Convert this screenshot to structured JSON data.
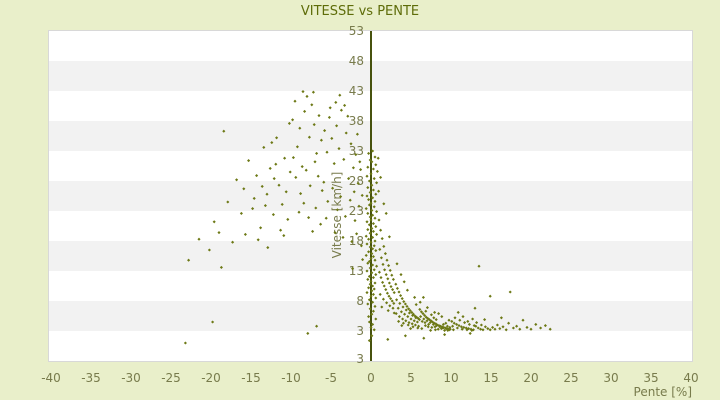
{
  "colors": {
    "page_bg": "#e9efca",
    "plot_bg": "#ffffff",
    "band": "#f2f2f2",
    "border": "#d8d8d8",
    "title": "#5e6c09",
    "label": "#787b4c",
    "axis": "#47520e",
    "point": "#6d7916"
  },
  "chart_data": {
    "type": "scatter",
    "title": "VITESSE vs PENTE",
    "xlabel": "Pente [%]",
    "ylabel": "Vitesse [km/h]",
    "xlim": [
      -40,
      40
    ],
    "ylim": [
      -2,
      53
    ],
    "x_ticks": [
      -40,
      -35,
      -30,
      -25,
      -20,
      -15,
      -10,
      -5,
      0,
      5,
      10,
      15,
      20,
      25,
      30,
      35,
      40
    ],
    "y_ticks": [
      53,
      48,
      43,
      38,
      33,
      28,
      23,
      18,
      13,
      8,
      3
    ],
    "y_axis_min_label": "3",
    "grid_bands": "alternating horizontal bands every 5 units",
    "legend": "none",
    "points": [
      [
        -23.2,
        1.0
      ],
      [
        -19.8,
        4.5
      ],
      [
        -22.8,
        14.8
      ],
      [
        -21.5,
        18.3
      ],
      [
        -20.2,
        16.5
      ],
      [
        -19.6,
        21.2
      ],
      [
        -19.0,
        19.4
      ],
      [
        -18.4,
        36.3
      ],
      [
        -18.7,
        13.6
      ],
      [
        -17.9,
        24.5
      ],
      [
        -17.3,
        17.8
      ],
      [
        -16.8,
        28.2
      ],
      [
        -16.2,
        22.6
      ],
      [
        -15.7,
        19.1
      ],
      [
        -15.3,
        31.4
      ],
      [
        -15.9,
        26.7
      ],
      [
        -14.8,
        23.4
      ],
      [
        -14.3,
        28.9
      ],
      [
        -13.8,
        20.2
      ],
      [
        -13.4,
        33.6
      ],
      [
        -13.0,
        25.8
      ],
      [
        -12.6,
        30.1
      ],
      [
        -12.2,
        22.4
      ],
      [
        -11.8,
        35.2
      ],
      [
        -11.5,
        27.3
      ],
      [
        -11.1,
        24.1
      ],
      [
        -10.8,
        31.8
      ],
      [
        -10.4,
        21.6
      ],
      [
        -10.1,
        29.5
      ],
      [
        -14.1,
        18.2
      ],
      [
        -12.9,
        16.9
      ],
      [
        -11.3,
        19.8
      ],
      [
        -10.6,
        26.2
      ],
      [
        -13.6,
        27.1
      ],
      [
        -12.4,
        34.4
      ],
      [
        -10.2,
        37.6
      ],
      [
        -14.6,
        25.1
      ],
      [
        -11.9,
        30.8
      ],
      [
        -10.9,
        18.9
      ],
      [
        -13.2,
        23.9
      ],
      [
        -12.1,
        28.4
      ],
      [
        -9.8,
        38.2
      ],
      [
        -9.5,
        41.3
      ],
      [
        -9.2,
        33.7
      ],
      [
        -8.9,
        36.8
      ],
      [
        -8.6,
        30.4
      ],
      [
        -8.3,
        39.6
      ],
      [
        -8.0,
        42.1
      ],
      [
        -7.7,
        35.3
      ],
      [
        -7.4,
        40.7
      ],
      [
        -7.1,
        37.4
      ],
      [
        -6.8,
        32.6
      ],
      [
        -6.5,
        38.9
      ],
      [
        -6.2,
        34.8
      ],
      [
        -9.4,
        28.6
      ],
      [
        -8.8,
        25.9
      ],
      [
        -8.1,
        29.8
      ],
      [
        -7.6,
        27.2
      ],
      [
        -7.0,
        31.2
      ],
      [
        -6.6,
        28.8
      ],
      [
        -6.1,
        26.4
      ],
      [
        -9.0,
        22.8
      ],
      [
        -8.4,
        24.3
      ],
      [
        -7.8,
        21.9
      ],
      [
        -6.9,
        23.5
      ],
      [
        -6.3,
        20.8
      ],
      [
        -9.7,
        31.9
      ],
      [
        -7.2,
        42.8
      ],
      [
        -8.5,
        42.9
      ],
      [
        -7.3,
        19.6
      ],
      [
        -7.9,
        2.6
      ],
      [
        -6.8,
        3.8
      ],
      [
        -5.8,
        36.4
      ],
      [
        -5.5,
        32.8
      ],
      [
        -5.2,
        38.6
      ],
      [
        -4.9,
        35.1
      ],
      [
        -4.6,
        30.9
      ],
      [
        -4.3,
        37.2
      ],
      [
        -4.0,
        33.4
      ],
      [
        -3.7,
        39.8
      ],
      [
        -3.4,
        31.6
      ],
      [
        -3.1,
        36.0
      ],
      [
        -2.8,
        28.4
      ],
      [
        -2.5,
        34.2
      ],
      [
        -2.2,
        30.2
      ],
      [
        -1.9,
        32.4
      ],
      [
        -1.6,
        27.6
      ],
      [
        -1.3,
        29.9
      ],
      [
        -5.9,
        27.8
      ],
      [
        -5.4,
        24.6
      ],
      [
        -4.8,
        26.8
      ],
      [
        -4.2,
        23.2
      ],
      [
        -3.8,
        25.4
      ],
      [
        -3.2,
        22.1
      ],
      [
        -2.6,
        24.8
      ],
      [
        -2.0,
        21.4
      ],
      [
        -1.5,
        23.8
      ],
      [
        -1.1,
        25.6
      ],
      [
        -5.6,
        21.8
      ],
      [
        -4.5,
        19.4
      ],
      [
        -3.5,
        18.6
      ],
      [
        -2.4,
        17.9
      ],
      [
        -1.8,
        19.2
      ],
      [
        -1.2,
        17.2
      ],
      [
        -5.1,
        40.2
      ],
      [
        -4.4,
        41.1
      ],
      [
        -3.9,
        42.3
      ],
      [
        -3.3,
        40.6
      ],
      [
        -2.9,
        38.8
      ],
      [
        -1.7,
        35.8
      ],
      [
        -1.4,
        31.2
      ],
      [
        -2.1,
        26.2
      ],
      [
        -1.05,
        14.9
      ],
      [
        -2.3,
        13.4
      ],
      [
        0.2,
        33.0
      ],
      [
        -0.3,
        32.6
      ],
      [
        0.5,
        32.0
      ],
      [
        -0.1,
        31.5
      ],
      [
        0.1,
        31.2
      ],
      [
        0.6,
        30.7
      ],
      [
        -0.4,
        30.3
      ],
      [
        0.3,
        30.0
      ],
      [
        0.8,
        29.6
      ],
      [
        0.0,
        29.2
      ],
      [
        -0.5,
        28.8
      ],
      [
        0.4,
        28.4
      ],
      [
        -0.2,
        28.0
      ],
      [
        0.7,
        27.7
      ],
      [
        0.1,
        27.3
      ],
      [
        -0.4,
        26.9
      ],
      [
        0.3,
        26.5
      ],
      [
        -0.1,
        26.1
      ],
      [
        0.6,
        25.8
      ],
      [
        -0.5,
        25.5
      ],
      [
        0.2,
        25.2
      ],
      [
        -0.3,
        24.9
      ],
      [
        0.5,
        24.6
      ],
      [
        0.0,
        24.3
      ],
      [
        -0.2,
        24.0
      ],
      [
        0.4,
        23.7
      ],
      [
        -0.6,
        23.4
      ],
      [
        0.1,
        23.1
      ],
      [
        0.7,
        22.9
      ],
      [
        -0.4,
        22.6
      ],
      [
        0.2,
        22.3
      ],
      [
        -0.1,
        22.0
      ],
      [
        0.5,
        21.8
      ],
      [
        0.0,
        21.5
      ],
      [
        -0.5,
        21.2
      ],
      [
        0.3,
        20.9
      ],
      [
        -0.2,
        20.7
      ],
      [
        0.6,
        20.4
      ],
      [
        0.1,
        20.1
      ],
      [
        -0.4,
        19.9
      ],
      [
        0.3,
        19.6
      ],
      [
        -0.1,
        19.3
      ],
      [
        0.7,
        19.1
      ],
      [
        -0.6,
        18.8
      ],
      [
        0.2,
        18.6
      ],
      [
        -0.3,
        18.3
      ],
      [
        0.5,
        18.0
      ],
      [
        0.0,
        17.8
      ],
      [
        -0.5,
        17.5
      ],
      [
        0.4,
        17.2
      ],
      [
        -0.1,
        17.0
      ],
      [
        0.2,
        16.7
      ],
      [
        0.6,
        16.4
      ],
      [
        -0.3,
        16.2
      ],
      [
        0.1,
        15.9
      ],
      [
        -0.6,
        15.6
      ],
      [
        0.3,
        15.4
      ],
      [
        0.0,
        15.1
      ],
      [
        0.5,
        14.8
      ],
      [
        -0.2,
        14.6
      ],
      [
        -0.4,
        14.3
      ],
      [
        0.2,
        14.0
      ],
      [
        0.7,
        13.8
      ],
      [
        -0.1,
        13.5
      ],
      [
        0.4,
        13.2
      ],
      [
        -0.5,
        13.0
      ],
      [
        0.1,
        12.7
      ],
      [
        0.6,
        12.4
      ],
      [
        -0.2,
        12.1
      ],
      [
        0.3,
        11.9
      ],
      [
        -0.4,
        11.6
      ],
      [
        0.0,
        11.3
      ],
      [
        0.5,
        11.0
      ],
      [
        -0.1,
        10.8
      ],
      [
        0.2,
        10.5
      ],
      [
        -0.3,
        10.2
      ],
      [
        0.4,
        10.0
      ],
      [
        0.1,
        9.7
      ],
      [
        -0.5,
        9.4
      ],
      [
        0.3,
        9.1
      ],
      [
        0.0,
        8.8
      ],
      [
        0.6,
        8.5
      ],
      [
        -0.2,
        8.2
      ],
      [
        0.2,
        7.8
      ],
      [
        -0.4,
        7.5
      ],
      [
        0.5,
        7.1
      ],
      [
        -0.1,
        6.7
      ],
      [
        0.3,
        6.3
      ],
      [
        0.1,
        5.8
      ],
      [
        -0.3,
        5.4
      ],
      [
        0.6,
        5.0
      ],
      [
        -0.2,
        4.5
      ],
      [
        0.2,
        4.1
      ],
      [
        0.0,
        3.6
      ],
      [
        0.4,
        3.2
      ],
      [
        0.1,
        2.2
      ],
      [
        -0.2,
        1.4
      ],
      [
        1.0,
        21.5
      ],
      [
        1.2,
        19.8
      ],
      [
        1.4,
        18.4
      ],
      [
        1.6,
        17.1
      ],
      [
        1.8,
        15.9
      ],
      [
        2.0,
        14.8
      ],
      [
        2.2,
        13.9
      ],
      [
        2.4,
        13.1
      ],
      [
        2.6,
        12.3
      ],
      [
        2.8,
        11.6
      ],
      [
        1.1,
        16.6
      ],
      [
        1.3,
        15.2
      ],
      [
        1.5,
        14.1
      ],
      [
        1.7,
        13.2
      ],
      [
        1.9,
        12.4
      ],
      [
        2.1,
        11.7
      ],
      [
        2.3,
        11.0
      ],
      [
        2.5,
        10.4
      ],
      [
        2.7,
        9.9
      ],
      [
        2.9,
        9.4
      ],
      [
        1.05,
        12.8
      ],
      [
        1.25,
        11.9
      ],
      [
        1.45,
        11.1
      ],
      [
        1.65,
        10.5
      ],
      [
        1.85,
        9.9
      ],
      [
        2.05,
        9.3
      ],
      [
        2.25,
        8.8
      ],
      [
        2.45,
        8.4
      ],
      [
        2.65,
        8.0
      ],
      [
        2.85,
        7.6
      ],
      [
        1.15,
        9.1
      ],
      [
        1.55,
        8.3
      ],
      [
        1.95,
        7.7
      ],
      [
        2.35,
        7.2
      ],
      [
        2.75,
        6.8
      ],
      [
        1.35,
        7.0
      ],
      [
        2.15,
        6.4
      ],
      [
        2.9,
        6.0
      ],
      [
        1.2,
        28.6
      ],
      [
        0.9,
        31.8
      ],
      [
        1.6,
        24.2
      ],
      [
        2.3,
        18.7
      ],
      [
        1.9,
        22.6
      ],
      [
        0.95,
        26.3
      ],
      [
        2.1,
        1.6
      ],
      [
        3.1,
        10.8
      ],
      [
        3.3,
        10.1
      ],
      [
        3.5,
        9.5
      ],
      [
        3.7,
        8.9
      ],
      [
        3.9,
        8.4
      ],
      [
        4.1,
        7.9
      ],
      [
        4.3,
        7.5
      ],
      [
        4.5,
        7.1
      ],
      [
        4.7,
        6.7
      ],
      [
        4.9,
        6.4
      ],
      [
        5.1,
        6.1
      ],
      [
        5.3,
        5.8
      ],
      [
        5.5,
        5.5
      ],
      [
        5.7,
        5.3
      ],
      [
        5.9,
        5.1
      ],
      [
        3.2,
        8.2
      ],
      [
        3.6,
        7.6
      ],
      [
        4.0,
        7.0
      ],
      [
        4.4,
        6.5
      ],
      [
        4.8,
        6.0
      ],
      [
        5.2,
        5.6
      ],
      [
        5.6,
        5.2
      ],
      [
        3.4,
        6.8
      ],
      [
        3.8,
        6.2
      ],
      [
        4.2,
        5.8
      ],
      [
        4.6,
        5.4
      ],
      [
        5.0,
        5.0
      ],
      [
        5.4,
        4.7
      ],
      [
        5.8,
        4.5
      ],
      [
        3.15,
        5.9
      ],
      [
        3.55,
        5.4
      ],
      [
        3.95,
        5.0
      ],
      [
        4.35,
        4.7
      ],
      [
        4.75,
        4.4
      ],
      [
        5.15,
        4.2
      ],
      [
        5.55,
        4.0
      ],
      [
        5.95,
        3.8
      ],
      [
        3.45,
        4.6
      ],
      [
        4.05,
        4.3
      ],
      [
        4.65,
        4.0
      ],
      [
        5.25,
        3.7
      ],
      [
        5.85,
        3.5
      ],
      [
        3.75,
        12.4
      ],
      [
        4.55,
        9.8
      ],
      [
        5.45,
        8.6
      ],
      [
        3.25,
        14.2
      ],
      [
        4.15,
        11.2
      ],
      [
        5.65,
        7.4
      ],
      [
        3.85,
        3.9
      ],
      [
        4.95,
        3.4
      ],
      [
        4.3,
        2.2
      ],
      [
        6.1,
        6.6
      ],
      [
        6.3,
        6.2
      ],
      [
        6.5,
        5.9
      ],
      [
        6.7,
        5.6
      ],
      [
        6.9,
        5.3
      ],
      [
        7.1,
        5.1
      ],
      [
        7.3,
        4.9
      ],
      [
        7.5,
        4.7
      ],
      [
        7.7,
        4.5
      ],
      [
        7.9,
        4.3
      ],
      [
        8.1,
        4.2
      ],
      [
        8.3,
        4.0
      ],
      [
        8.5,
        3.9
      ],
      [
        8.7,
        3.8
      ],
      [
        8.9,
        3.7
      ],
      [
        9.1,
        3.6
      ],
      [
        9.3,
        3.5
      ],
      [
        9.5,
        3.4
      ],
      [
        9.7,
        3.3
      ],
      [
        9.9,
        3.3
      ],
      [
        6.2,
        5.4
      ],
      [
        6.6,
        5.0
      ],
      [
        7.0,
        4.7
      ],
      [
        7.4,
        4.4
      ],
      [
        7.8,
        4.1
      ],
      [
        8.2,
        3.9
      ],
      [
        8.6,
        3.7
      ],
      [
        9.0,
        3.5
      ],
      [
        9.4,
        3.4
      ],
      [
        9.8,
        3.2
      ],
      [
        6.4,
        4.6
      ],
      [
        7.2,
        4.1
      ],
      [
        8.0,
        3.7
      ],
      [
        8.8,
        3.4
      ],
      [
        9.6,
        3.1
      ],
      [
        6.8,
        3.9
      ],
      [
        7.6,
        3.6
      ],
      [
        8.4,
        3.3
      ],
      [
        9.2,
        3.1
      ],
      [
        6.15,
        7.8
      ],
      [
        7.05,
        6.9
      ],
      [
        7.95,
        6.1
      ],
      [
        8.85,
        5.4
      ],
      [
        9.75,
        4.8
      ],
      [
        6.55,
        8.6
      ],
      [
        8.45,
        5.9
      ],
      [
        6.35,
        3.4
      ],
      [
        7.45,
        3.1
      ],
      [
        9.35,
        4.3
      ],
      [
        6.75,
        4.4
      ],
      [
        7.55,
        5.7
      ],
      [
        8.15,
        4.9
      ],
      [
        9.05,
        4.1
      ],
      [
        9.55,
        3.8
      ],
      [
        6.05,
        4.9
      ],
      [
        7.15,
        3.7
      ],
      [
        8.05,
        3.2
      ],
      [
        9.85,
        3.6
      ],
      [
        6.85,
        6.3
      ],
      [
        7.85,
        5.2
      ],
      [
        6.6,
        1.8
      ],
      [
        9.2,
        2.4
      ],
      [
        10.1,
        4.6
      ],
      [
        10.4,
        4.3
      ],
      [
        10.7,
        4.1
      ],
      [
        11.0,
        3.9
      ],
      [
        11.3,
        3.7
      ],
      [
        11.6,
        3.6
      ],
      [
        11.9,
        3.5
      ],
      [
        12.2,
        3.4
      ],
      [
        12.5,
        3.3
      ],
      [
        12.8,
        3.2
      ],
      [
        10.2,
        3.8
      ],
      [
        10.8,
        3.5
      ],
      [
        11.4,
        3.3
      ],
      [
        12.0,
        3.2
      ],
      [
        12.6,
        3.1
      ],
      [
        10.5,
        5.2
      ],
      [
        11.1,
        4.8
      ],
      [
        11.7,
        4.4
      ],
      [
        12.3,
        4.1
      ],
      [
        12.9,
        3.9
      ],
      [
        10.3,
        3.2
      ],
      [
        11.5,
        5.4
      ],
      [
        12.1,
        4.6
      ],
      [
        12.7,
        5.0
      ],
      [
        10.9,
        6.1
      ],
      [
        12.4,
        2.6
      ],
      [
        13.1,
        3.8
      ],
      [
        13.4,
        3.5
      ],
      [
        13.7,
        3.3
      ],
      [
        14.0,
        3.2
      ],
      [
        13.2,
        4.4
      ],
      [
        13.8,
        4.0
      ],
      [
        14.3,
        3.7
      ],
      [
        14.6,
        3.4
      ],
      [
        14.9,
        3.2
      ],
      [
        13.5,
        13.8
      ],
      [
        14.2,
        4.9
      ],
      [
        14.9,
        8.8
      ],
      [
        13.0,
        6.8
      ],
      [
        15.2,
        3.6
      ],
      [
        15.5,
        3.3
      ],
      [
        15.8,
        4.0
      ],
      [
        16.1,
        3.4
      ],
      [
        16.5,
        3.7
      ],
      [
        16.9,
        3.2
      ],
      [
        16.3,
        5.2
      ],
      [
        17.2,
        4.3
      ],
      [
        17.4,
        9.5
      ],
      [
        17.8,
        3.5
      ],
      [
        18.2,
        3.8
      ],
      [
        18.6,
        3.3
      ],
      [
        19.0,
        4.8
      ],
      [
        19.5,
        3.6
      ],
      [
        20.0,
        3.3
      ],
      [
        20.6,
        4.1
      ],
      [
        21.2,
        3.5
      ],
      [
        21.8,
        3.9
      ],
      [
        22.4,
        3.3
      ]
    ]
  }
}
